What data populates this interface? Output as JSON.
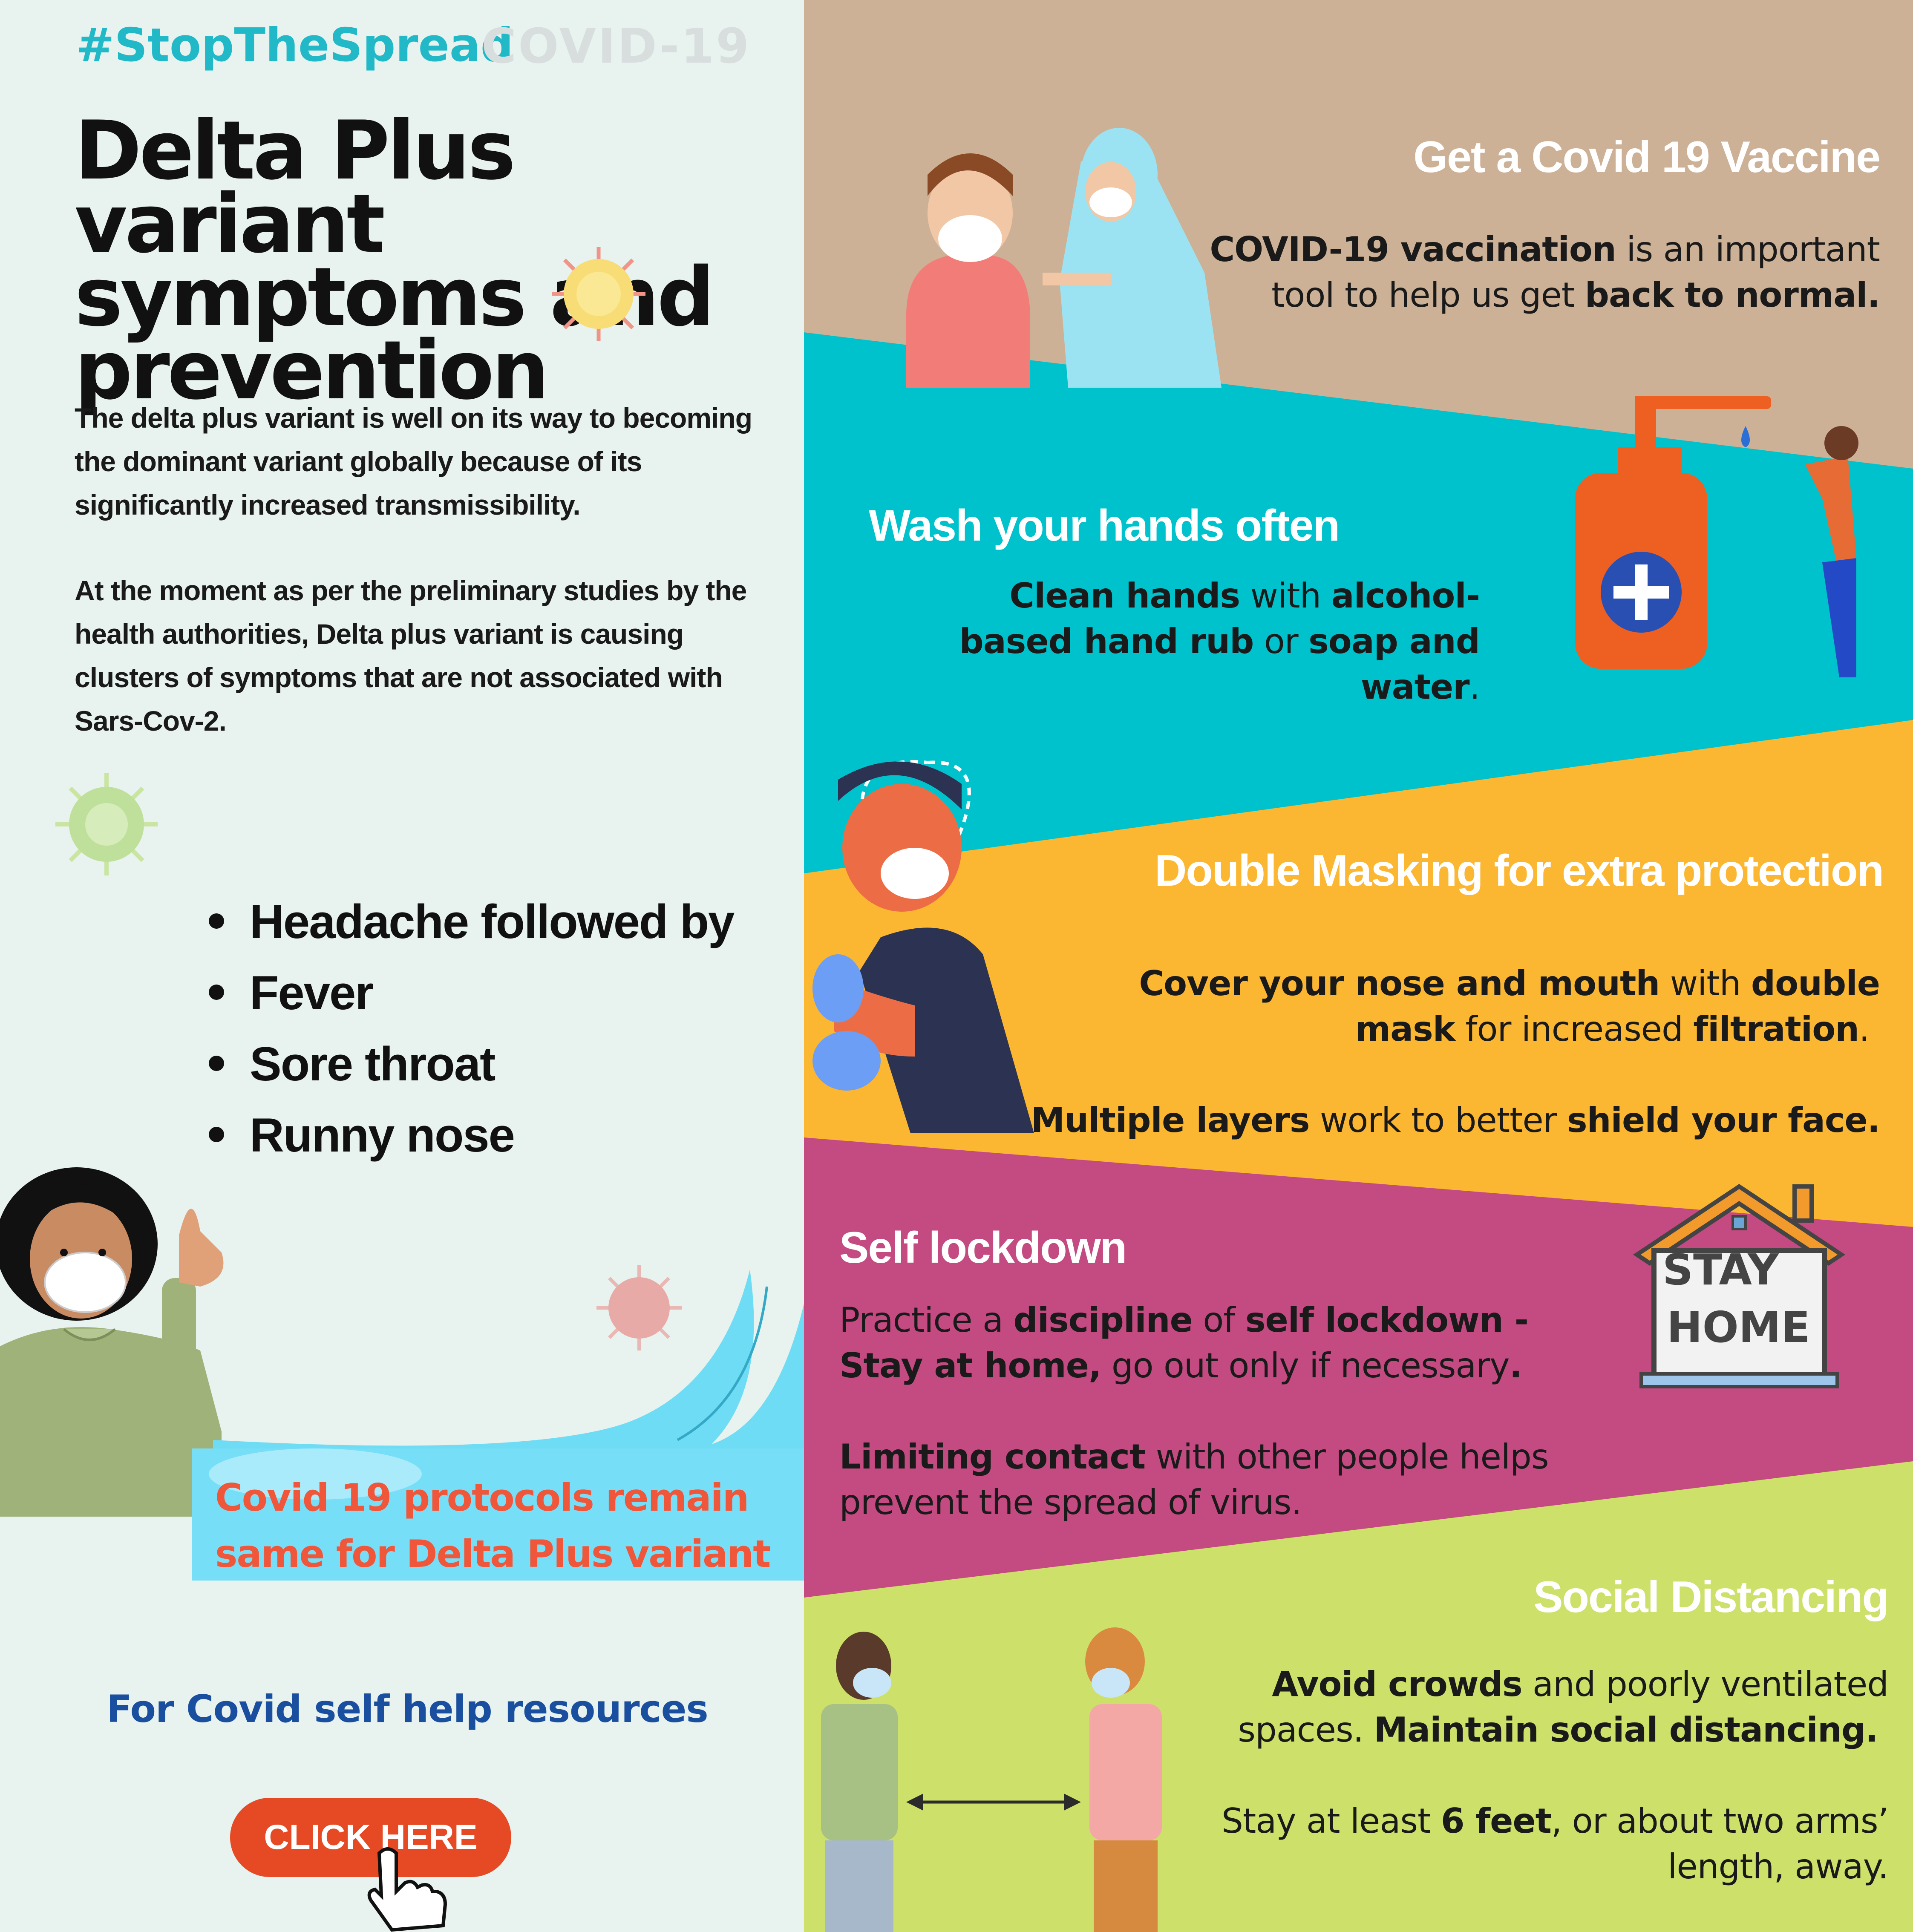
{
  "header": {
    "hashtag": "#StopTheSpread",
    "covid_tag": "COVID-19"
  },
  "title": {
    "line1": "Delta Plus variant",
    "line2": "symptoms and",
    "line3": "prevention"
  },
  "intro": {
    "p1": "The delta plus variant is well on its way to becoming the dominant variant globally because of its significantly increased transmissibility.",
    "p2": "At the moment as per the preliminary studies by the health authorities, Delta plus variant is causing clusters of symptoms that are not associated with Sars-Cov-2."
  },
  "symptoms": [
    "Headache followed by",
    "Fever",
    "Sore throat",
    "Runny nose"
  ],
  "banner": {
    "line1": "Covid 19 protocols remain",
    "line2": "same for Delta Plus variant"
  },
  "resources": {
    "label": "For Covid self help resources",
    "button": "CLICK HERE"
  },
  "colors": {
    "tan": "#cdb196",
    "cyan": "#00c2cc",
    "yellow": "#fcb732",
    "magenta": "#c44a82",
    "lime": "#cde16a",
    "cta": "#e64a24"
  },
  "sections": {
    "vaccine": {
      "heading": "Get a Covid 19 Vaccine",
      "b1": "COVID-19 vaccination",
      "t1": " is an important",
      "t2": "tool to help us get ",
      "b2": "back to normal."
    },
    "wash": {
      "heading": "Wash your hands often",
      "b1": "Clean hands",
      "t1": " with ",
      "b2": "alcohol-",
      "b3": "based hand rub",
      "t2": " or ",
      "b4": "soap and",
      "b5": "water",
      "t3": "."
    },
    "mask": {
      "heading": "Double Masking for extra protection",
      "b1": "Cover your nose and mouth",
      "t1": " with ",
      "b2": "double",
      "b3": "mask",
      "t2": " for increased ",
      "b4": "filtration",
      "t3": ".",
      "b5": "Multiple layers",
      "t4": " work to better ",
      "b6": "shield your face."
    },
    "lockdown": {
      "heading": "Self lockdown",
      "t1": "Practice a ",
      "b1": "discipline",
      "t2": " of ",
      "b2": "self lockdown -",
      "b3": "Stay at home,",
      "t3": " go out only if necessary",
      "b4": ".",
      "b5": "Limiting contact",
      "t4": " with other people helps",
      "t5": "prevent the spread of virus.",
      "sign1": "STAY",
      "sign2": "HOME"
    },
    "distance": {
      "heading": "Social Distancing",
      "b1": "Avoid crowds",
      "t1": " and poorly ventilated",
      "t2": "spaces. ",
      "b2": "Maintain social distancing.",
      "t3": "Stay at least ",
      "b3": "6 feet",
      "t4": ", or about two arms’",
      "t5": "length, away."
    }
  }
}
